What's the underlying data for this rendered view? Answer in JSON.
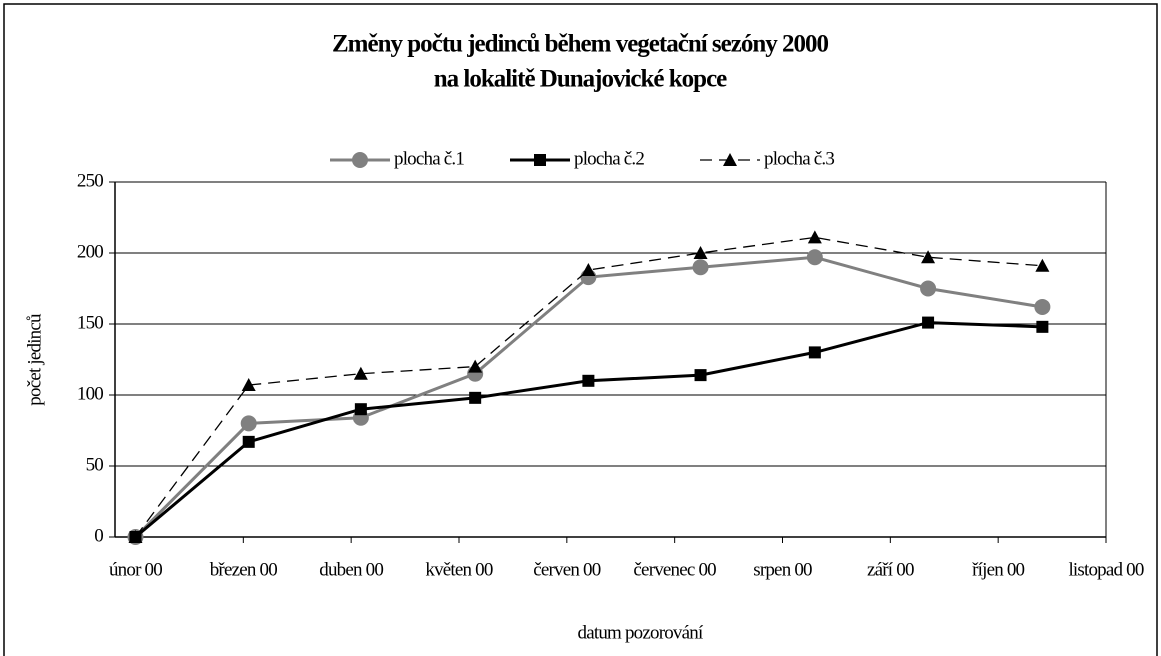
{
  "chart_data": {
    "type": "line",
    "title": [
      "Změny počtu jedinců během vegetační sezóny 2000",
      "na lokalitě Dunajovické kopce"
    ],
    "x_label": "datum pozorování",
    "y_label": "počet jedinců",
    "x": [
      0,
      1.05,
      2.09,
      3.15,
      4.2,
      5.24,
      6.3,
      7.35,
      8.41
    ],
    "xlim": [
      -0.19,
      9
    ],
    "xticks": [
      {
        "value": 0,
        "label": "únor 00"
      },
      {
        "value": 1,
        "label": "březen 00"
      },
      {
        "value": 2,
        "label": "duben 00"
      },
      {
        "value": 3,
        "label": "květen 00"
      },
      {
        "value": 4,
        "label": "červen 00"
      },
      {
        "value": 5,
        "label": "červenec 00"
      },
      {
        "value": 6,
        "label": "srpen 00"
      },
      {
        "value": 7,
        "label": "září 00"
      },
      {
        "value": 8,
        "label": "říjen 00"
      },
      {
        "value": 9,
        "label": "listopad 00"
      }
    ],
    "ylim": [
      0,
      250
    ],
    "yticks": [
      0,
      50,
      100,
      150,
      200,
      250
    ],
    "grid": true,
    "legend": "top",
    "series": [
      {
        "name": "plocha č.1",
        "color": "#808080",
        "marker": "circle",
        "dashed": false,
        "values": [
          0,
          80,
          84,
          115,
          183,
          190,
          197,
          175,
          162
        ]
      },
      {
        "name": "plocha č.2",
        "color": "#000000",
        "marker": "square",
        "dashed": false,
        "values": [
          0,
          67,
          90,
          98,
          110,
          114,
          130,
          151,
          148
        ]
      },
      {
        "name": "plocha č.3",
        "color": "#000000",
        "marker": "triangle",
        "dashed": true,
        "values": [
          0,
          107,
          115,
          120,
          188,
          200,
          211,
          197,
          191
        ]
      }
    ]
  }
}
